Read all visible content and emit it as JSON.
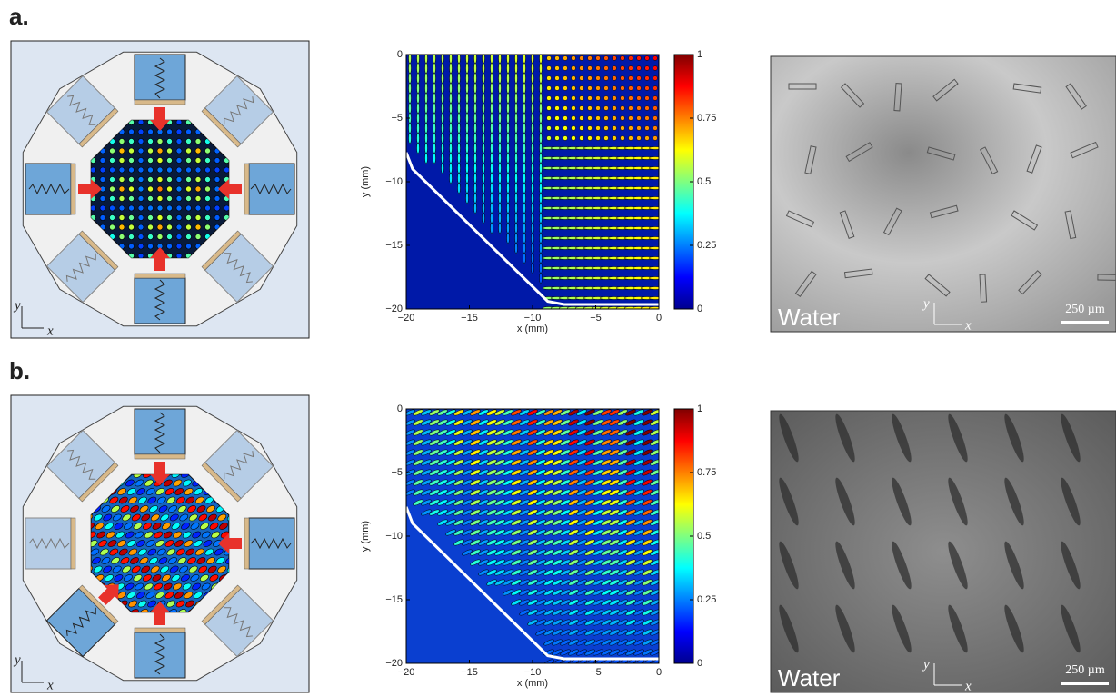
{
  "figure": {
    "panels": [
      {
        "label": "a.",
        "schematic": {
          "axis_x": "x",
          "axis_y": "y"
        },
        "contour": {
          "xlabel": "x (mm)",
          "ylabel": "y (mm)",
          "xlim": [
            -20,
            0
          ],
          "ylim": [
            -20,
            0
          ],
          "xticks": [
            {
              "value": -20,
              "label": "−20"
            },
            {
              "value": -15,
              "label": "−15"
            },
            {
              "value": -10,
              "label": "−10"
            },
            {
              "value": -5,
              "label": "−5"
            },
            0
          ],
          "yticks": [
            0,
            {
              "value": -5,
              "label": "−5"
            },
            {
              "value": -10,
              "label": "−10"
            },
            {
              "value": -15,
              "label": "−15"
            },
            {
              "value": -20,
              "label": "−20"
            }
          ],
          "clim": [
            0,
            1
          ],
          "cticks": [
            0,
            0.25,
            0.5,
            0.75,
            1
          ]
        },
        "photo": {
          "medium": "Water",
          "scale": "250 µm",
          "axis_x": "x",
          "axis_y": "y"
        }
      },
      {
        "label": "b.",
        "schematic": {
          "axis_x": "x",
          "axis_y": "y"
        },
        "contour": {
          "xlabel": "x (mm)",
          "ylabel": "y (mm)",
          "xlim": [
            -20,
            0
          ],
          "ylim": [
            -20,
            0
          ],
          "xticks": [
            {
              "value": -20,
              "label": "−20"
            },
            {
              "value": -15,
              "label": "−15"
            },
            {
              "value": -10,
              "label": "−10"
            },
            {
              "value": -5,
              "label": "−5"
            },
            0
          ],
          "yticks": [
            0,
            {
              "value": -5,
              "label": "−5"
            },
            {
              "value": -10,
              "label": "−10"
            },
            {
              "value": -15,
              "label": "−15"
            },
            {
              "value": -20,
              "label": "−20"
            }
          ],
          "clim": [
            0,
            1
          ],
          "cticks": [
            0,
            0.25,
            0.5,
            0.75,
            1
          ]
        },
        "photo": {
          "medium": "Water",
          "scale": "250 µm",
          "axis_x": "x",
          "axis_y": "y"
        }
      }
    ]
  }
}
